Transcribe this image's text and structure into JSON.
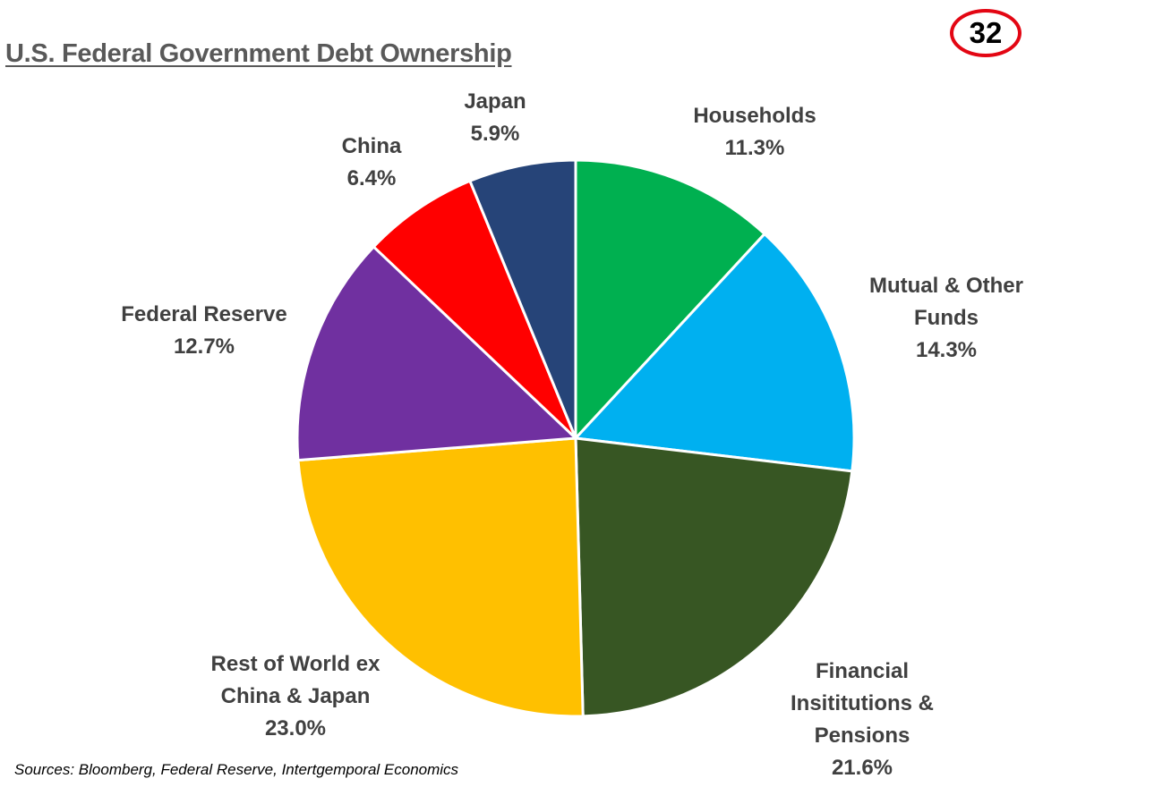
{
  "page_number": "32",
  "source_note": "Sources: Bloomberg, Federal Reserve, Intertgemporal Economics",
  "chart_data": {
    "type": "pie",
    "title": "U.S. Federal Government Debt Ownership",
    "start_angle_deg": 0,
    "direction": "clockwise",
    "slices": [
      {
        "key": "households",
        "label": [
          "Households"
        ],
        "value_text": "11.3%",
        "value": 11.3,
        "color": "#00B050"
      },
      {
        "key": "mutual-funds",
        "label": [
          "Mutual & Other",
          "Funds"
        ],
        "value_text": "14.3%",
        "value": 14.3,
        "color": "#00B0F0"
      },
      {
        "key": "financial-institutions",
        "label": [
          "Financial",
          "Insititutions &",
          "Pensions"
        ],
        "value_text": "21.6%",
        "value": 21.6,
        "color": "#375623"
      },
      {
        "key": "rest-of-world",
        "label": [
          "Rest of World ex",
          "China & Japan"
        ],
        "value_text": "23.0%",
        "value": 23.0,
        "color": "#FFC000"
      },
      {
        "key": "federal-reserve",
        "label": [
          "Federal Reserve"
        ],
        "value_text": "12.7%",
        "value": 12.7,
        "color": "#7030A0"
      },
      {
        "key": "china",
        "label": [
          "China"
        ],
        "value_text": "6.4%",
        "value": 6.4,
        "color": "#FF0000"
      },
      {
        "key": "japan",
        "label": [
          "Japan"
        ],
        "value_text": "5.9%",
        "value": 5.9,
        "color": "#264478"
      }
    ]
  }
}
